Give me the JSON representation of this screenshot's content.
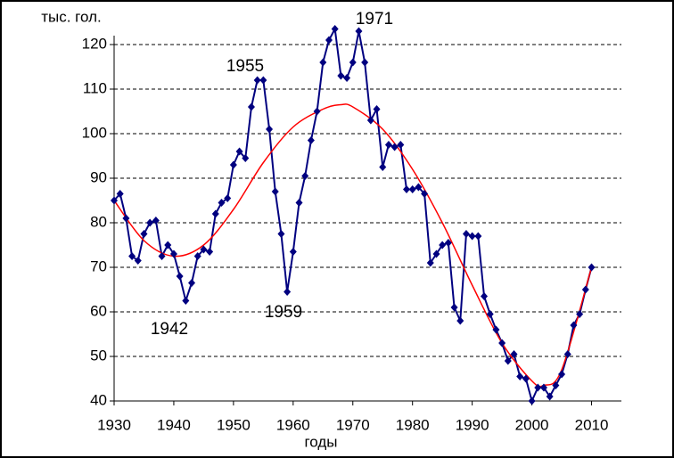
{
  "chart_data": {
    "type": "line",
    "y_label": "тыс. гол.",
    "x_label": "годы",
    "annotations": [
      "1955",
      "1959",
      "1942",
      "1971"
    ],
    "x": [
      1930,
      1931,
      1932,
      1933,
      1934,
      1935,
      1936,
      1937,
      1938,
      1939,
      1940,
      1941,
      1942,
      1943,
      1944,
      1945,
      1946,
      1947,
      1948,
      1949,
      1950,
      1951,
      1952,
      1953,
      1954,
      1955,
      1956,
      1957,
      1958,
      1959,
      1960,
      1961,
      1962,
      1963,
      1964,
      1965,
      1966,
      1967,
      1968,
      1969,
      1970,
      1971,
      1972,
      1973,
      1974,
      1975,
      1976,
      1977,
      1978,
      1979,
      1980,
      1981,
      1982,
      1983,
      1984,
      1985,
      1986,
      1987,
      1988,
      1989,
      1990,
      1991,
      1992,
      1993,
      1994,
      1995,
      1996,
      1997,
      1998,
      1999,
      2000,
      2001,
      2002,
      2003,
      2004,
      2005,
      2006,
      2007,
      2008,
      2009,
      2010
    ],
    "series": [
      {
        "color": "#000080",
        "values": [
          85,
          86.5,
          81,
          72.5,
          71.5,
          77.5,
          80,
          80.5,
          72.5,
          75,
          73,
          68,
          62.5,
          66.5,
          72.5,
          74,
          73.5,
          82,
          84.5,
          85.5,
          93,
          96,
          94.5,
          106,
          112,
          112,
          101,
          87,
          77.5,
          64.5,
          73.5,
          84.5,
          90.5,
          98.5,
          105,
          116,
          121,
          123.5,
          113,
          112.5,
          116,
          123,
          116,
          103,
          105.5,
          92.5,
          97.5,
          97,
          97.5,
          87.5,
          87.5,
          88,
          86.5,
          71,
          73,
          75,
          75.5,
          61,
          58,
          77.5,
          77,
          77,
          63.5,
          59.5,
          56,
          53,
          49,
          50.5,
          45.5,
          45,
          40,
          43,
          43,
          41,
          43.5,
          46,
          50.5,
          57,
          59.5,
          65,
          70
        ]
      },
      {
        "color": "#ff0000",
        "x": [
          1930,
          1935,
          1940,
          1945,
          1950,
          1955,
          1960,
          1965,
          1968,
          1970,
          1975,
          1980,
          1985,
          1990,
          1995,
          2000,
          2002,
          2005,
          2010
        ],
        "values": [
          85,
          76,
          72.5,
          75,
          83,
          93.5,
          101.5,
          105.5,
          106.5,
          106,
          101,
          92,
          80,
          66,
          53,
          44.5,
          43.5,
          47,
          70
        ]
      }
    ],
    "xlim": [
      1930,
      2015
    ],
    "ylim": [
      40,
      122
    ],
    "xticks": [
      1930,
      1940,
      1950,
      1960,
      1970,
      1980,
      1990,
      2000,
      2010
    ],
    "yticks": [
      40,
      50,
      60,
      70,
      80,
      90,
      100,
      110,
      120
    ],
    "grid": true
  }
}
